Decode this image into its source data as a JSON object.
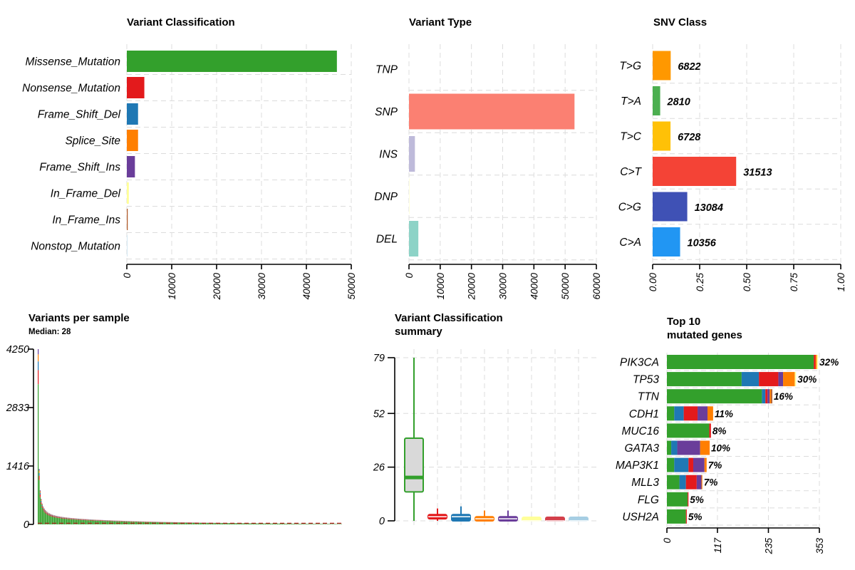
{
  "chart_data": [
    {
      "id": "vc",
      "type": "bar",
      "orientation": "horizontal",
      "title": "Variant Classification",
      "categories": [
        "Missense_Mutation",
        "Nonsense_Mutation",
        "Frame_Shift_Del",
        "Splice_Site",
        "Frame_Shift_Ins",
        "In_Frame_Del",
        "In_Frame_Ins",
        "Nonstop_Mutation"
      ],
      "values": [
        46800,
        3900,
        2500,
        2500,
        1800,
        450,
        200,
        80
      ],
      "colors": [
        "#33A02C",
        "#E31A1C",
        "#1F78B4",
        "#FF7F00",
        "#6A3D9A",
        "#FFFF99",
        "#B15928",
        "#A6CEE3"
      ],
      "xlim": [
        0,
        50000
      ],
      "xticks": [
        0,
        10000,
        20000,
        30000,
        40000,
        50000
      ],
      "xtick_labels": [
        "0",
        "10000",
        "20000",
        "30000",
        "40000",
        "50000"
      ],
      "xlabel": "",
      "ylabel": "",
      "grid": true
    },
    {
      "id": "vt",
      "type": "bar",
      "orientation": "horizontal",
      "title": "Variant Type",
      "categories": [
        "TNP",
        "SNP",
        "INS",
        "DNP",
        "DEL"
      ],
      "values": [
        0,
        53000,
        1900,
        100,
        3000
      ],
      "colors": [
        "#F0E442",
        "#FB8072",
        "#BEBADA",
        "#FFFFB3",
        "#8DD3C7"
      ],
      "xlim": [
        0,
        60000
      ],
      "xticks": [
        0,
        10000,
        20000,
        30000,
        40000,
        50000,
        60000
      ],
      "xtick_labels": [
        "0",
        "10000",
        "20000",
        "30000",
        "40000",
        "50000",
        "60000"
      ],
      "xlabel": "",
      "ylabel": "",
      "grid": true
    },
    {
      "id": "snv",
      "type": "bar",
      "orientation": "horizontal",
      "title": "SNV Class",
      "categories": [
        "T>G",
        "T>A",
        "T>C",
        "C>T",
        "C>G",
        "C>A"
      ],
      "values": [
        0.096,
        0.04,
        0.095,
        0.444,
        0.184,
        0.146
      ],
      "counts": [
        "6822",
        "2810",
        "6728",
        "31513",
        "13084",
        "10356"
      ],
      "colors": [
        "#FF9800",
        "#4CAF50",
        "#FFC107",
        "#F44336",
        "#3F51B5",
        "#2196F3"
      ],
      "xlim": [
        0,
        1
      ],
      "xticks": [
        0,
        0.25,
        0.5,
        0.75,
        1.0
      ],
      "xtick_labels": [
        "0.00",
        "0.25",
        "0.50",
        "0.75",
        "1.00"
      ],
      "xlabel": "",
      "ylabel": "",
      "grid": true
    },
    {
      "id": "vps",
      "type": "bar",
      "title": "Variants per sample",
      "subtitle": "Median: 28",
      "ylim": [
        0,
        4250
      ],
      "yticks": [
        0,
        1416,
        2833,
        4250
      ],
      "ytick_labels": [
        "0",
        "1416",
        "2833",
        "4250"
      ],
      "sample_count": 300,
      "peak": 4250,
      "median": 28,
      "stack_colors": [
        "#33A02C",
        "#E31A1C",
        "#1F78B4",
        "#FF7F00",
        "#6A3D9A"
      ],
      "stack_fractions": [
        0.8,
        0.08,
        0.05,
        0.04,
        0.03
      ],
      "xlabel": "",
      "ylabel": "",
      "grid": false
    },
    {
      "id": "vcs",
      "type": "box",
      "title": "Variant Classification",
      "title_line2": "summary",
      "ylim": [
        0,
        79
      ],
      "yticks": [
        0,
        26,
        52,
        79
      ],
      "ytick_labels": [
        "0",
        "26",
        "52",
        "79"
      ],
      "boxes": [
        {
          "name": "Missense_Mutation",
          "color": "#33A02C",
          "fill": "#d9d9d9",
          "min": 0,
          "q1": 14,
          "median": 21,
          "q3": 40,
          "max": 79
        },
        {
          "name": "Nonsense_Mutation",
          "color": "#E31A1C",
          "fill": "#E31A1C",
          "min": 0,
          "q1": 1,
          "median": 2,
          "q3": 3,
          "max": 6
        },
        {
          "name": "Frame_Shift_Del",
          "color": "#1F78B4",
          "fill": "#1F78B4",
          "min": 0,
          "q1": 0,
          "median": 2,
          "q3": 3,
          "max": 7
        },
        {
          "name": "Splice_Site",
          "color": "#FF7F00",
          "fill": "#FF7F00",
          "min": 0,
          "q1": 0,
          "median": 1,
          "q3": 2,
          "max": 5
        },
        {
          "name": "Frame_Shift_Ins",
          "color": "#6A3D9A",
          "fill": "#6A3D9A",
          "min": 0,
          "q1": 0,
          "median": 1,
          "q3": 2,
          "max": 5
        },
        {
          "name": "In_Frame_Del",
          "color": "#FFFF99",
          "fill": "#FFFF99",
          "min": 0,
          "q1": 0,
          "median": 0,
          "q3": 1,
          "max": 2
        },
        {
          "name": "In_Frame_Ins",
          "color": "#D33F4A",
          "fill": "#D33F4A",
          "min": 0,
          "q1": 0,
          "median": 0,
          "q3": 1,
          "max": 1
        },
        {
          "name": "Nonstop_Mutation",
          "color": "#A6CEE3",
          "fill": "#A6CEE3",
          "min": 0,
          "q1": 0,
          "median": 0,
          "q3": 1,
          "max": 1
        }
      ],
      "xlabel": "",
      "ylabel": "",
      "grid": true
    },
    {
      "id": "top10",
      "type": "bar",
      "orientation": "horizontal",
      "stacked": true,
      "title": "Top 10",
      "title_line2": "mutated genes",
      "categories": [
        "PIK3CA",
        "TP53",
        "TTN",
        "CDH1",
        "MUC16",
        "GATA3",
        "MAP3K1",
        "MLL3",
        "FLG",
        "USH2A"
      ],
      "percent_labels": [
        "32%",
        "30%",
        "16%",
        "11%",
        "8%",
        "10%",
        "7%",
        "7%",
        "5%",
        "5%"
      ],
      "segment_colors": [
        "#33A02C",
        "#1F78B4",
        "#E31A1C",
        "#6A3D9A",
        "#FF7F00",
        "#B15928",
        "#FFFF99"
      ],
      "segments": [
        [
          340,
          0,
          4,
          0,
          3,
          0,
          3
        ],
        [
          173,
          40,
          45,
          11,
          27,
          0,
          3
        ],
        [
          220,
          8,
          5,
          5,
          3,
          3,
          0
        ],
        [
          17,
          22,
          32,
          23,
          13,
          0,
          0
        ],
        [
          98,
          0,
          4,
          0,
          0,
          0,
          0
        ],
        [
          10,
          14,
          0,
          53,
          22,
          0,
          0
        ],
        [
          17,
          33,
          11,
          26,
          5,
          0,
          0
        ],
        [
          29,
          15,
          25,
          11,
          2,
          0,
          0
        ],
        [
          48,
          0,
          2,
          0,
          0,
          0,
          0
        ],
        [
          44,
          0,
          2,
          0,
          0,
          0,
          0
        ]
      ],
      "xlim": [
        0,
        353
      ],
      "xticks": [
        0,
        117,
        235,
        353
      ],
      "xtick_labels": [
        "0",
        "117",
        "235",
        "353"
      ],
      "xlabel": "",
      "ylabel": "",
      "grid": true
    }
  ]
}
